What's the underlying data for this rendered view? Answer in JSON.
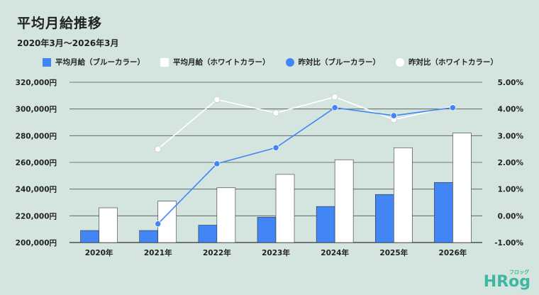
{
  "header": {
    "title": "平均月給推移",
    "subtitle": "2020年3月〜2026年3月"
  },
  "colors": {
    "blue": "#4285f4",
    "white": "#ffffff",
    "background": "#d4e5df",
    "grid": "#555555",
    "logo": "#3fb7a0"
  },
  "chart_data": {
    "type": "bar",
    "categories": [
      "2020年",
      "2021年",
      "2022年",
      "2023年",
      "2024年",
      "2025年",
      "2026年"
    ],
    "series": [
      {
        "name": "平均月給（ブルーカラー）",
        "type": "bar",
        "axis": "left",
        "color": "#4285f4",
        "values": [
          209000,
          209000,
          213000,
          219000,
          227000,
          236000,
          245000
        ]
      },
      {
        "name": "平均月給（ホワイトカラー）",
        "type": "bar",
        "axis": "left",
        "color": "#ffffff",
        "values": [
          226000,
          231000,
          241000,
          251000,
          262000,
          271000,
          282000
        ]
      },
      {
        "name": "昨対比（ブルーカラー）",
        "type": "line",
        "axis": "right",
        "color": "#4285f4",
        "values": [
          null,
          -0.3,
          1.95,
          2.55,
          4.05,
          3.75,
          4.05
        ]
      },
      {
        "name": "昨対比（ホワイトカラー）",
        "type": "line",
        "axis": "right",
        "color": "#ffffff",
        "values": [
          null,
          2.5,
          4.35,
          3.85,
          4.45,
          3.6,
          4.1
        ]
      }
    ],
    "left_axis": {
      "ylim": [
        200000,
        320000
      ],
      "ticks": [
        "200,000円",
        "220,000円",
        "240,000円",
        "260,000円",
        "280,000円",
        "300,000円",
        "320,000円"
      ]
    },
    "right_axis": {
      "ylim": [
        -1.0,
        5.0
      ],
      "ticks": [
        "-1.00%",
        "0.00%",
        "1.00%",
        "2.00%",
        "3.00%",
        "4.00%",
        "5.00%"
      ]
    },
    "grid": true,
    "legend_position": "top"
  },
  "logo": {
    "text": "HRog",
    "kana": "フロッグ"
  }
}
